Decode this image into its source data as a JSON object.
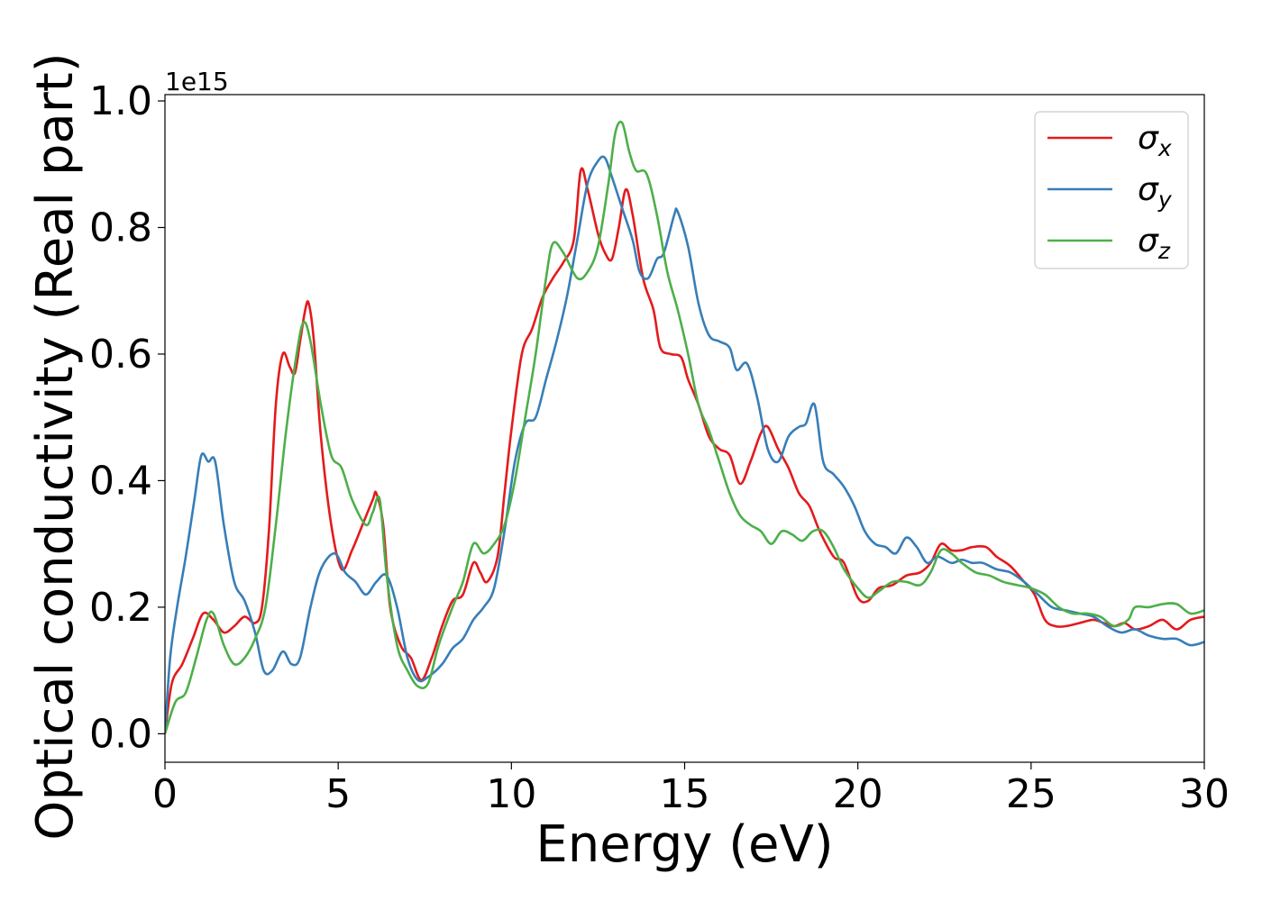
{
  "chart_data": {
    "type": "line",
    "xlabel": "Energy (eV)",
    "ylabel": "Optical conductivity (Real part)",
    "y_offset_label": "1e15",
    "xlim": [
      0,
      30
    ],
    "ylim": [
      -0.045,
      1.01
    ],
    "x_ticks": [
      0,
      5,
      10,
      15,
      20,
      25,
      30
    ],
    "y_ticks": [
      0.0,
      0.2,
      0.4,
      0.6,
      0.8,
      1.0
    ],
    "x_tick_labels": [
      "0",
      "5",
      "10",
      "15",
      "20",
      "25",
      "30"
    ],
    "y_tick_labels": [
      "0.0",
      "0.2",
      "0.4",
      "0.6",
      "0.8",
      "1.0"
    ],
    "legend_position": "top-right",
    "grid": false,
    "series": [
      {
        "name": "σx",
        "legend_base": "σ",
        "legend_sub": "x",
        "color": "#e41a1c",
        "points": [
          [
            0,
            0.0
          ],
          [
            0.2,
            0.08
          ],
          [
            0.5,
            0.11
          ],
          [
            0.8,
            0.15
          ],
          [
            1.1,
            0.19
          ],
          [
            1.4,
            0.18
          ],
          [
            1.7,
            0.16
          ],
          [
            2.0,
            0.17
          ],
          [
            2.3,
            0.185
          ],
          [
            2.6,
            0.175
          ],
          [
            2.8,
            0.2
          ],
          [
            3.0,
            0.32
          ],
          [
            3.2,
            0.52
          ],
          [
            3.4,
            0.6
          ],
          [
            3.6,
            0.58
          ],
          [
            3.75,
            0.57
          ],
          [
            3.9,
            0.62
          ],
          [
            4.05,
            0.67
          ],
          [
            4.15,
            0.68
          ],
          [
            4.3,
            0.62
          ],
          [
            4.5,
            0.47
          ],
          [
            4.8,
            0.33
          ],
          [
            5.1,
            0.26
          ],
          [
            5.4,
            0.29
          ],
          [
            5.7,
            0.33
          ],
          [
            6.0,
            0.37
          ],
          [
            6.1,
            0.38
          ],
          [
            6.3,
            0.33
          ],
          [
            6.5,
            0.2
          ],
          [
            6.8,
            0.14
          ],
          [
            7.1,
            0.12
          ],
          [
            7.4,
            0.085
          ],
          [
            7.7,
            0.12
          ],
          [
            8.0,
            0.17
          ],
          [
            8.3,
            0.21
          ],
          [
            8.6,
            0.22
          ],
          [
            8.9,
            0.27
          ],
          [
            9.1,
            0.255
          ],
          [
            9.3,
            0.24
          ],
          [
            9.6,
            0.28
          ],
          [
            9.8,
            0.38
          ],
          [
            10.0,
            0.48
          ],
          [
            10.3,
            0.6
          ],
          [
            10.6,
            0.64
          ],
          [
            10.9,
            0.69
          ],
          [
            11.2,
            0.72
          ],
          [
            11.5,
            0.745
          ],
          [
            11.8,
            0.78
          ],
          [
            12.0,
            0.89
          ],
          [
            12.2,
            0.86
          ],
          [
            12.5,
            0.79
          ],
          [
            12.7,
            0.76
          ],
          [
            12.9,
            0.75
          ],
          [
            13.1,
            0.8
          ],
          [
            13.3,
            0.86
          ],
          [
            13.5,
            0.82
          ],
          [
            13.8,
            0.72
          ],
          [
            14.1,
            0.67
          ],
          [
            14.3,
            0.61
          ],
          [
            14.6,
            0.6
          ],
          [
            14.9,
            0.595
          ],
          [
            15.1,
            0.56
          ],
          [
            15.4,
            0.52
          ],
          [
            15.7,
            0.47
          ],
          [
            16.0,
            0.45
          ],
          [
            16.3,
            0.44
          ],
          [
            16.6,
            0.395
          ],
          [
            16.9,
            0.43
          ],
          [
            17.2,
            0.475
          ],
          [
            17.4,
            0.485
          ],
          [
            17.7,
            0.45
          ],
          [
            18.0,
            0.42
          ],
          [
            18.3,
            0.38
          ],
          [
            18.6,
            0.36
          ],
          [
            18.9,
            0.32
          ],
          [
            19.3,
            0.28
          ],
          [
            19.6,
            0.27
          ],
          [
            20.0,
            0.215
          ],
          [
            20.3,
            0.21
          ],
          [
            20.6,
            0.23
          ],
          [
            21.0,
            0.235
          ],
          [
            21.4,
            0.25
          ],
          [
            21.8,
            0.255
          ],
          [
            22.1,
            0.27
          ],
          [
            22.4,
            0.3
          ],
          [
            22.7,
            0.29
          ],
          [
            23.0,
            0.29
          ],
          [
            23.3,
            0.295
          ],
          [
            23.7,
            0.295
          ],
          [
            24.0,
            0.28
          ],
          [
            24.4,
            0.265
          ],
          [
            24.8,
            0.24
          ],
          [
            25.1,
            0.22
          ],
          [
            25.4,
            0.18
          ],
          [
            25.7,
            0.17
          ],
          [
            26.0,
            0.17
          ],
          [
            26.4,
            0.175
          ],
          [
            26.8,
            0.18
          ],
          [
            27.1,
            0.175
          ],
          [
            27.4,
            0.17
          ],
          [
            27.7,
            0.175
          ],
          [
            28.0,
            0.165
          ],
          [
            28.4,
            0.17
          ],
          [
            28.8,
            0.18
          ],
          [
            29.2,
            0.165
          ],
          [
            29.6,
            0.18
          ],
          [
            30.0,
            0.185
          ]
        ]
      },
      {
        "name": "σy",
        "legend_base": "σ",
        "legend_sub": "y",
        "color": "#377eb8",
        "points": [
          [
            0,
            0.0
          ],
          [
            0.15,
            0.12
          ],
          [
            0.35,
            0.2
          ],
          [
            0.6,
            0.28
          ],
          [
            0.85,
            0.37
          ],
          [
            1.05,
            0.44
          ],
          [
            1.25,
            0.43
          ],
          [
            1.45,
            0.43
          ],
          [
            1.7,
            0.33
          ],
          [
            2.0,
            0.24
          ],
          [
            2.3,
            0.21
          ],
          [
            2.6,
            0.16
          ],
          [
            2.85,
            0.1
          ],
          [
            3.1,
            0.1
          ],
          [
            3.4,
            0.13
          ],
          [
            3.65,
            0.11
          ],
          [
            3.9,
            0.12
          ],
          [
            4.2,
            0.2
          ],
          [
            4.5,
            0.26
          ],
          [
            4.9,
            0.285
          ],
          [
            5.2,
            0.255
          ],
          [
            5.5,
            0.24
          ],
          [
            5.8,
            0.22
          ],
          [
            6.1,
            0.24
          ],
          [
            6.4,
            0.25
          ],
          [
            6.7,
            0.2
          ],
          [
            7.0,
            0.12
          ],
          [
            7.3,
            0.085
          ],
          [
            7.6,
            0.09
          ],
          [
            8.0,
            0.11
          ],
          [
            8.3,
            0.135
          ],
          [
            8.6,
            0.15
          ],
          [
            8.9,
            0.18
          ],
          [
            9.2,
            0.2
          ],
          [
            9.5,
            0.23
          ],
          [
            9.8,
            0.32
          ],
          [
            10.1,
            0.43
          ],
          [
            10.4,
            0.49
          ],
          [
            10.7,
            0.5
          ],
          [
            11.0,
            0.56
          ],
          [
            11.3,
            0.62
          ],
          [
            11.6,
            0.69
          ],
          [
            11.9,
            0.78
          ],
          [
            12.2,
            0.87
          ],
          [
            12.5,
            0.905
          ],
          [
            12.7,
            0.91
          ],
          [
            12.9,
            0.88
          ],
          [
            13.2,
            0.83
          ],
          [
            13.5,
            0.78
          ],
          [
            13.7,
            0.73
          ],
          [
            13.95,
            0.72
          ],
          [
            14.2,
            0.75
          ],
          [
            14.4,
            0.76
          ],
          [
            14.7,
            0.82
          ],
          [
            14.8,
            0.825
          ],
          [
            15.1,
            0.77
          ],
          [
            15.4,
            0.68
          ],
          [
            15.7,
            0.63
          ],
          [
            16.0,
            0.62
          ],
          [
            16.3,
            0.61
          ],
          [
            16.5,
            0.575
          ],
          [
            16.8,
            0.585
          ],
          [
            17.1,
            0.53
          ],
          [
            17.4,
            0.45
          ],
          [
            17.7,
            0.43
          ],
          [
            18.0,
            0.47
          ],
          [
            18.3,
            0.485
          ],
          [
            18.5,
            0.49
          ],
          [
            18.75,
            0.52
          ],
          [
            19.0,
            0.43
          ],
          [
            19.3,
            0.41
          ],
          [
            19.6,
            0.39
          ],
          [
            19.9,
            0.36
          ],
          [
            20.2,
            0.32
          ],
          [
            20.5,
            0.3
          ],
          [
            20.8,
            0.295
          ],
          [
            21.1,
            0.285
          ],
          [
            21.4,
            0.31
          ],
          [
            21.7,
            0.295
          ],
          [
            22.0,
            0.27
          ],
          [
            22.3,
            0.28
          ],
          [
            22.7,
            0.27
          ],
          [
            23.0,
            0.275
          ],
          [
            23.3,
            0.27
          ],
          [
            23.6,
            0.27
          ],
          [
            24.0,
            0.26
          ],
          [
            24.4,
            0.255
          ],
          [
            24.8,
            0.24
          ],
          [
            25.2,
            0.22
          ],
          [
            25.6,
            0.2
          ],
          [
            26.0,
            0.195
          ],
          [
            26.4,
            0.19
          ],
          [
            26.8,
            0.185
          ],
          [
            27.2,
            0.17
          ],
          [
            27.6,
            0.16
          ],
          [
            28.0,
            0.165
          ],
          [
            28.4,
            0.155
          ],
          [
            28.8,
            0.15
          ],
          [
            29.2,
            0.15
          ],
          [
            29.6,
            0.14
          ],
          [
            30.0,
            0.145
          ]
        ]
      },
      {
        "name": "σz",
        "legend_base": "σ",
        "legend_sub": "z",
        "color": "#4daf4a",
        "points": [
          [
            0,
            0.0
          ],
          [
            0.3,
            0.05
          ],
          [
            0.6,
            0.065
          ],
          [
            0.9,
            0.12
          ],
          [
            1.2,
            0.18
          ],
          [
            1.4,
            0.19
          ],
          [
            1.7,
            0.14
          ],
          [
            2.0,
            0.11
          ],
          [
            2.3,
            0.12
          ],
          [
            2.6,
            0.15
          ],
          [
            2.9,
            0.2
          ],
          [
            3.2,
            0.33
          ],
          [
            3.5,
            0.48
          ],
          [
            3.8,
            0.6
          ],
          [
            4.0,
            0.65
          ],
          [
            4.2,
            0.62
          ],
          [
            4.5,
            0.52
          ],
          [
            4.8,
            0.44
          ],
          [
            5.1,
            0.42
          ],
          [
            5.4,
            0.37
          ],
          [
            5.8,
            0.33
          ],
          [
            6.0,
            0.35
          ],
          [
            6.2,
            0.37
          ],
          [
            6.4,
            0.25
          ],
          [
            6.7,
            0.14
          ],
          [
            7.0,
            0.1
          ],
          [
            7.3,
            0.075
          ],
          [
            7.6,
            0.08
          ],
          [
            7.9,
            0.14
          ],
          [
            8.3,
            0.2
          ],
          [
            8.6,
            0.24
          ],
          [
            8.9,
            0.3
          ],
          [
            9.2,
            0.285
          ],
          [
            9.5,
            0.3
          ],
          [
            9.8,
            0.33
          ],
          [
            10.1,
            0.4
          ],
          [
            10.4,
            0.5
          ],
          [
            10.7,
            0.6
          ],
          [
            11.0,
            0.72
          ],
          [
            11.2,
            0.775
          ],
          [
            11.5,
            0.76
          ],
          [
            11.9,
            0.72
          ],
          [
            12.2,
            0.73
          ],
          [
            12.5,
            0.77
          ],
          [
            12.8,
            0.87
          ],
          [
            13.0,
            0.95
          ],
          [
            13.2,
            0.965
          ],
          [
            13.4,
            0.92
          ],
          [
            13.6,
            0.89
          ],
          [
            13.9,
            0.885
          ],
          [
            14.2,
            0.82
          ],
          [
            14.5,
            0.73
          ],
          [
            14.8,
            0.67
          ],
          [
            15.1,
            0.6
          ],
          [
            15.4,
            0.52
          ],
          [
            15.7,
            0.48
          ],
          [
            16.0,
            0.43
          ],
          [
            16.3,
            0.38
          ],
          [
            16.6,
            0.345
          ],
          [
            16.9,
            0.33
          ],
          [
            17.2,
            0.32
          ],
          [
            17.5,
            0.3
          ],
          [
            17.8,
            0.32
          ],
          [
            18.1,
            0.315
          ],
          [
            18.4,
            0.305
          ],
          [
            18.7,
            0.32
          ],
          [
            19.0,
            0.32
          ],
          [
            19.3,
            0.295
          ],
          [
            19.6,
            0.26
          ],
          [
            20.0,
            0.23
          ],
          [
            20.3,
            0.215
          ],
          [
            20.6,
            0.225
          ],
          [
            21.0,
            0.24
          ],
          [
            21.4,
            0.24
          ],
          [
            21.8,
            0.235
          ],
          [
            22.1,
            0.255
          ],
          [
            22.4,
            0.29
          ],
          [
            22.7,
            0.285
          ],
          [
            23.0,
            0.27
          ],
          [
            23.4,
            0.255
          ],
          [
            23.8,
            0.25
          ],
          [
            24.2,
            0.24
          ],
          [
            24.6,
            0.235
          ],
          [
            25.0,
            0.23
          ],
          [
            25.4,
            0.22
          ],
          [
            25.8,
            0.2
          ],
          [
            26.2,
            0.19
          ],
          [
            26.6,
            0.19
          ],
          [
            27.0,
            0.185
          ],
          [
            27.4,
            0.17
          ],
          [
            27.8,
            0.18
          ],
          [
            28.0,
            0.2
          ],
          [
            28.4,
            0.2
          ],
          [
            28.8,
            0.205
          ],
          [
            29.2,
            0.205
          ],
          [
            29.6,
            0.19
          ],
          [
            30.0,
            0.195
          ]
        ]
      }
    ]
  }
}
